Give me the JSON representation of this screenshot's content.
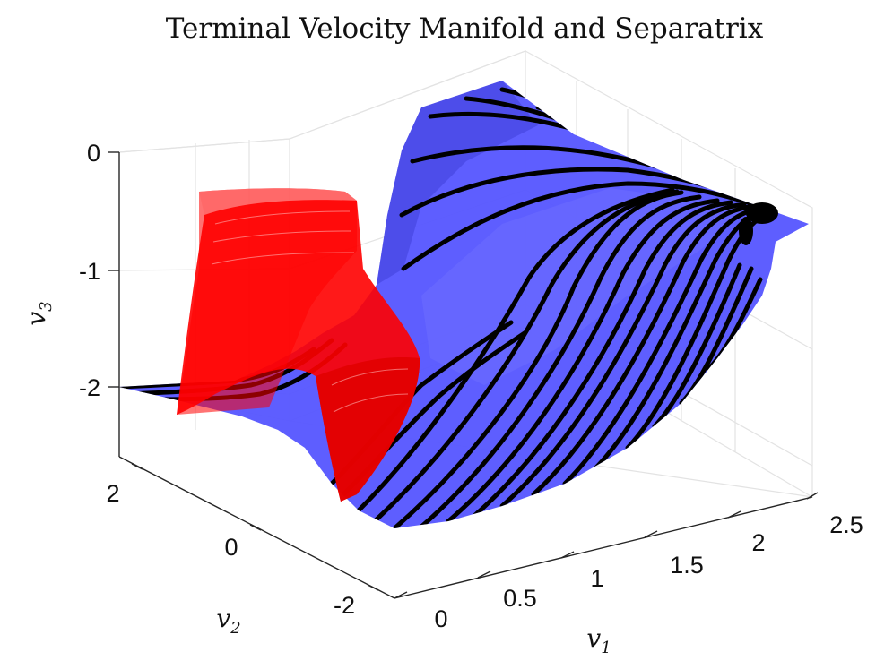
{
  "chart_data": {
    "type": "surface3d",
    "title": "Terminal Velocity Manifold and Separatrix",
    "xlabel": "v",
    "xlabel_sub": "1",
    "ylabel": "v",
    "ylabel_sub": "2",
    "zlabel": "v",
    "zlabel_sub": "3",
    "xlim": [
      0,
      2.5
    ],
    "ylim": [
      -2.5,
      2.5
    ],
    "zlim": [
      -2.5,
      0
    ],
    "x_ticks": [
      {
        "value": 0,
        "label": "0"
      },
      {
        "value": 0.5,
        "label": "0.5"
      },
      {
        "value": 1,
        "label": "1"
      },
      {
        "value": 1.5,
        "label": "1.5"
      },
      {
        "value": 2,
        "label": "2"
      },
      {
        "value": 2.5,
        "label": "2.5"
      }
    ],
    "y_ticks": [
      {
        "value": -2,
        "label": "-2"
      },
      {
        "value": 0,
        "label": "0"
      },
      {
        "value": 2,
        "label": "2"
      }
    ],
    "z_ticks": [
      {
        "value": 0,
        "label": "0"
      },
      {
        "value": -1,
        "label": "-1"
      },
      {
        "value": -2,
        "label": "-2"
      }
    ],
    "surfaces": [
      {
        "name": "terminal-velocity-manifold",
        "color": "#5555ff",
        "opacity": 0.95
      },
      {
        "name": "separatrix",
        "color": "#ff0000",
        "opacity": 0.75
      }
    ],
    "trajectory_color": "#000000",
    "grid": true
  }
}
